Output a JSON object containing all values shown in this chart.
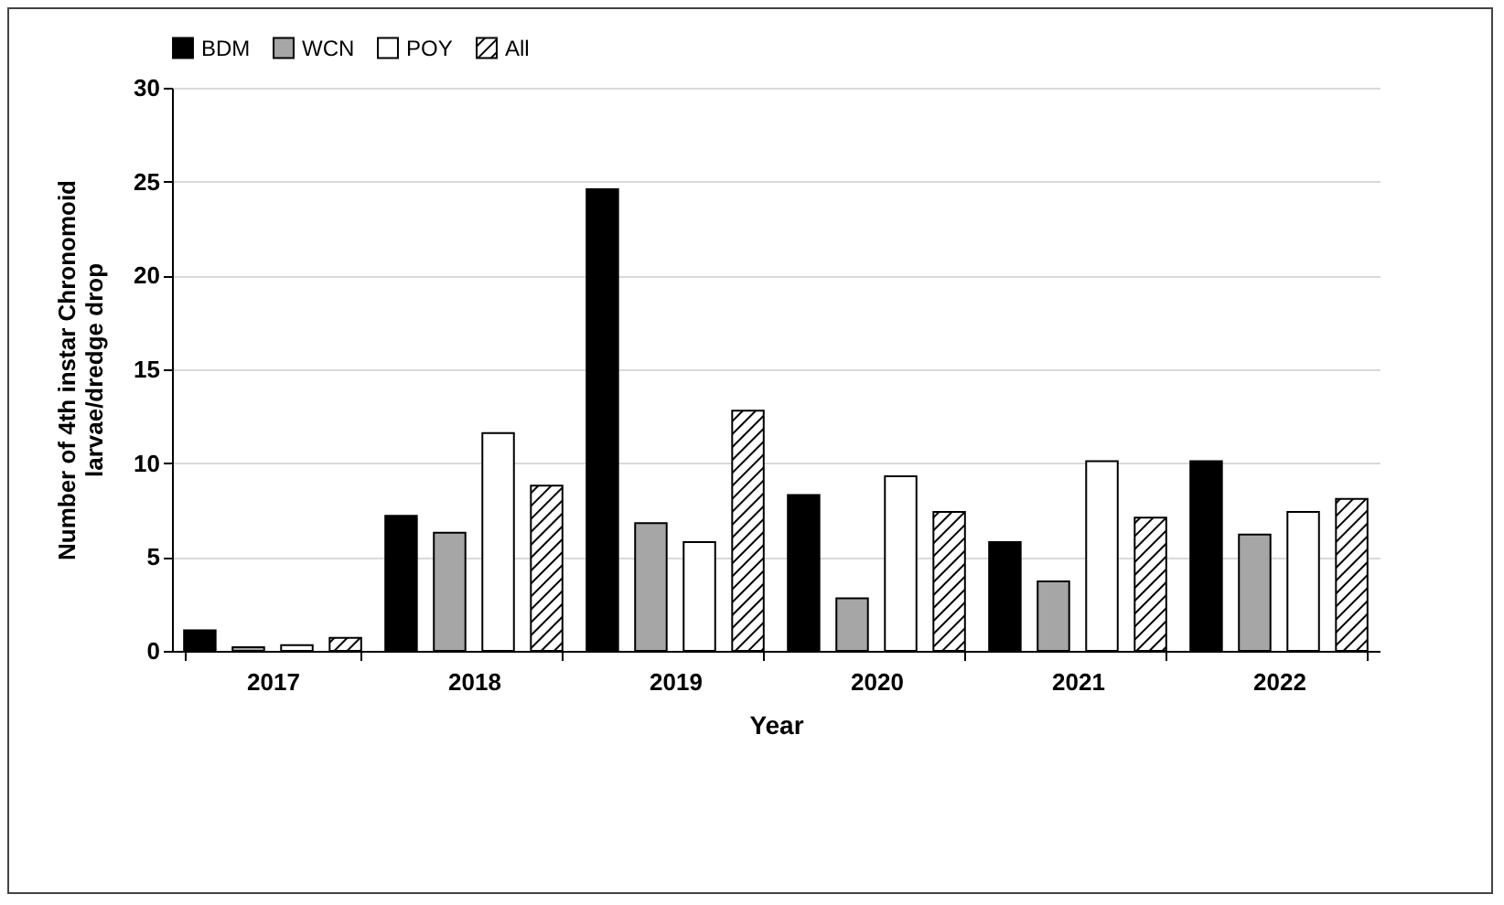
{
  "chart_data": {
    "type": "bar",
    "xlabel": "Year",
    "ylabel": "Number of 4th instar Chronomoid larvae/dredge drop",
    "categories": [
      "2017",
      "2018",
      "2019",
      "2020",
      "2021",
      "2022"
    ],
    "series": [
      {
        "name": "BDM",
        "color": "#000000",
        "values": [
          1.1,
          7.2,
          24.6,
          8.3,
          5.8,
          10.1
        ]
      },
      {
        "name": "WCN",
        "color": "#a6a6a6",
        "values": [
          0.2,
          6.3,
          6.8,
          2.8,
          3.7,
          6.2
        ]
      },
      {
        "name": "POY",
        "color": "#ffffff",
        "values": [
          0.3,
          11.6,
          5.8,
          9.3,
          10.1,
          7.4
        ]
      },
      {
        "name": "All",
        "color": "#000000",
        "values": [
          0.7,
          8.8,
          12.8,
          7.4,
          7.1,
          8.1
        ]
      }
    ],
    "ylim": [
      0,
      30
    ],
    "yticks": [
      0,
      5,
      10,
      15,
      20,
      25,
      30
    ],
    "grid": "y",
    "legend": "top"
  }
}
